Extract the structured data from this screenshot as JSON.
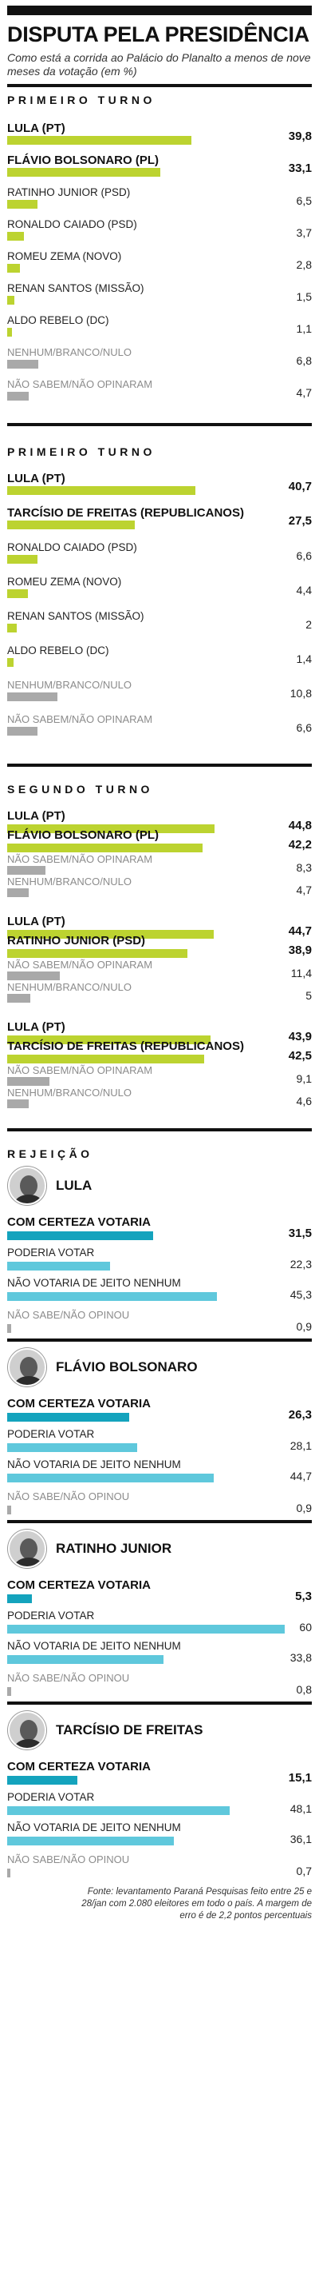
{
  "title": "DISPUTA PELA PRESIDÊNCIA",
  "subtitle": "Como está a corrida ao Palácio do Planalto a menos de nove meses da votação (em %)",
  "footnote": "Fonte: levantamento Paraná Pesquisas feito entre 25 e 28/jan com 2.080 eleitores em todo o país. A margem de erro é de 2,2 pontos percentuais",
  "colors": {
    "green": "#bcd330",
    "gray": "#a9a9a9",
    "cyan": "#5fc8dc",
    "darkcyan": "#14a3bd"
  },
  "icons": {
    "avatar": "candidate-photo-icon"
  },
  "chart_data": [
    {
      "type": "bar",
      "section": "PRIMEIRO TURNO",
      "categories": [
        "LULA (PT)",
        "FLÁVIO BOLSONARO (PL)",
        "RATINHO JUNIOR (PSD)",
        "RONALDO CAIADO (PSD)",
        "ROMEU ZEMA (NOVO)",
        "RENAN SANTOS (MISSÃO)",
        "ALDO REBELO (DC)",
        "NENHUM/BRANCO/NULO",
        "NÃO SABEM/NÃO OPINARAM"
      ],
      "values": [
        39.8,
        33.1,
        6.5,
        3.7,
        2.8,
        1.5,
        1.1,
        6.8,
        4.7
      ],
      "labels": [
        "39,8",
        "33,1",
        "6,5",
        "3,7",
        "2,8",
        "1,5",
        "1,1",
        "6,8",
        "4,7"
      ]
    },
    {
      "type": "bar",
      "section": "PRIMEIRO TURNO",
      "categories": [
        "LULA (PT)",
        "TARCÍSIO DE FREITAS (REPUBLICANOS)",
        "RONALDO CAIADO (PSD)",
        "ROMEU ZEMA (NOVO)",
        "RENAN SANTOS (MISSÃO)",
        "ALDO REBELO (DC)",
        "NENHUM/BRANCO/NULO",
        "NÃO SABEM/NÃO OPINARAM"
      ],
      "values": [
        40.7,
        27.5,
        6.6,
        4.4,
        2,
        1.4,
        10.8,
        6.6
      ],
      "labels": [
        "40,7",
        "27,5",
        "6,6",
        "4,4",
        "2",
        "1,4",
        "10,8",
        "6,6"
      ]
    },
    {
      "type": "bar",
      "section": "SEGUNDO TURNO",
      "groups": [
        {
          "categories": [
            "LULA (PT)",
            "FLÁVIO BOLSONARO (PL)",
            "NÃO SABEM/NÃO OPINARAM",
            "NENHUM/BRANCO/NULO"
          ],
          "values": [
            44.8,
            42.2,
            8.3,
            4.7
          ],
          "labels": [
            "44,8",
            "42,2",
            "8,3",
            "4,7"
          ]
        },
        {
          "categories": [
            "LULA (PT)",
            "RATINHO JUNIOR (PSD)",
            "NÃO SABEM/NÃO OPINARAM",
            "NENHUM/BRANCO/NULO"
          ],
          "values": [
            44.7,
            38.9,
            11.4,
            5
          ],
          "labels": [
            "44,7",
            "38,9",
            "11,4",
            "5"
          ]
        },
        {
          "categories": [
            "LULA (PT)",
            "TARCÍSIO DE FREITAS (REPUBLICANOS)",
            "NÃO SABEM/NÃO OPINARAM",
            "NENHUM/BRANCO/NULO"
          ],
          "values": [
            43.9,
            42.5,
            9.1,
            4.6
          ],
          "labels": [
            "43,9",
            "42,5",
            "9,1",
            "4,6"
          ]
        }
      ]
    },
    {
      "type": "bar",
      "section": "REJEIÇÃO",
      "categories": [
        "COM CERTEZA VOTARIA",
        "PODERIA VOTAR",
        "NÃO VOTARIA DE JEITO NENHUM",
        "NÃO SABE/NÃO OPINOU"
      ],
      "candidates": [
        {
          "name": "LULA",
          "values": [
            31.5,
            22.3,
            45.3,
            0.9
          ],
          "labels": [
            "31,5",
            "22,3",
            "45,3",
            "0,9"
          ]
        },
        {
          "name": "FLÁVIO BOLSONARO",
          "values": [
            26.3,
            28.1,
            44.7,
            0.9
          ],
          "labels": [
            "26,3",
            "28,1",
            "44,7",
            "0,9"
          ]
        },
        {
          "name": "RATINHO JUNIOR",
          "values": [
            5.3,
            60,
            33.8,
            0.8
          ],
          "labels": [
            "5,3",
            "60",
            "33,8",
            "0,8"
          ]
        },
        {
          "name": "TARCÍSIO DE FREITAS",
          "values": [
            15.1,
            48.1,
            36.1,
            0.7
          ],
          "labels": [
            "15,1",
            "48,1",
            "36,1",
            "0,7"
          ]
        }
      ]
    }
  ]
}
